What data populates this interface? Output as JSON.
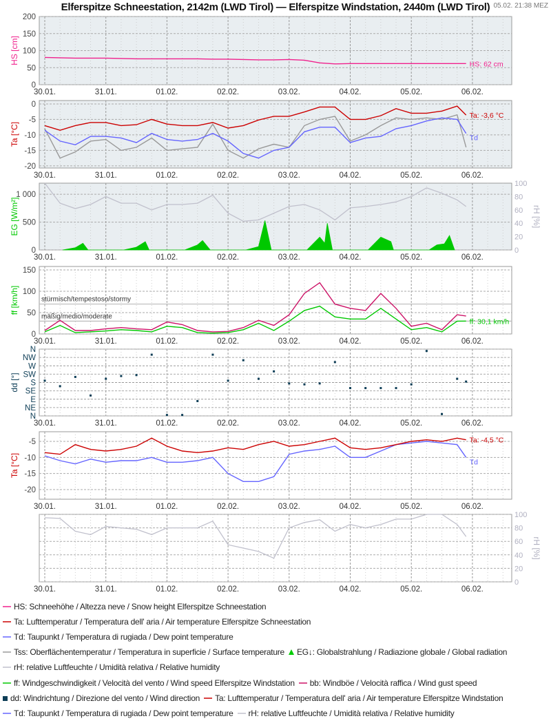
{
  "header": {
    "title": "Elferspitze Schneestation, 2142m (LWD Tirol) — Elferspitze Windstation, 2440m (LWD Tirol)",
    "timestamp": "05.02. 21:38 MEZ"
  },
  "colors": {
    "HS": "#f0208c",
    "Ta": "#cc0000",
    "Td": "#6464ff",
    "Tss": "#999999",
    "rH": "#c0c0cc",
    "EG": "#00c800",
    "ff": "#00c800",
    "bb": "#cc1166",
    "dd": "#0d3d56",
    "plot_bg": "#e9eef1",
    "grid": "#aaaaaa"
  },
  "chart_data": [
    {
      "id": "hs",
      "type": "line",
      "ylabel": "HS [cm]",
      "ylim": [
        0,
        200
      ],
      "yticks": [
        0,
        50,
        100,
        150,
        200
      ],
      "x_ticks": [
        "30.01.",
        "31.01.",
        "01.02.",
        "02.02.",
        "03.02.",
        "04.02.",
        "05.02.",
        "06.02."
      ],
      "grid": true,
      "x": [
        "30.01. 00:00",
        "30.01. 06:00",
        "30.01. 12:00",
        "30.01. 18:00",
        "31.01. 00:00",
        "31.01. 06:00",
        "31.01. 12:00",
        "31.01. 18:00",
        "01.02. 00:00",
        "01.02. 06:00",
        "01.02. 12:00",
        "01.02. 18:00",
        "02.02. 00:00",
        "02.02. 06:00",
        "02.02. 12:00",
        "02.02. 18:00",
        "03.02. 00:00",
        "03.02. 06:00",
        "03.02. 12:00",
        "03.02. 18:00",
        "04.02. 00:00",
        "04.02. 06:00",
        "04.02. 12:00",
        "04.02. 18:00",
        "05.02. 00:00",
        "05.02. 06:00",
        "05.02. 12:00",
        "05.02. 18:00",
        "05.02. 21:30"
      ],
      "series": [
        {
          "key": "HS",
          "values": [
            80,
            79,
            78,
            78,
            78,
            77,
            76,
            76,
            76,
            76,
            76,
            75,
            75,
            74,
            73,
            73,
            74,
            72,
            64,
            61,
            62,
            62,
            62,
            62,
            62,
            62,
            62,
            62,
            62
          ]
        }
      ],
      "end_labels": [
        {
          "series": "HS",
          "text": "HS: 62 cm"
        }
      ]
    },
    {
      "id": "ta1",
      "type": "line",
      "ylabel": "Ta [°C]",
      "ylim": [
        -20.7,
        1.1
      ],
      "yticks": [
        0,
        -5,
        -10,
        -15,
        -20
      ],
      "grid": true,
      "x": [
        "30.01. 00:00",
        "30.01. 06:00",
        "30.01. 12:00",
        "30.01. 18:00",
        "31.01. 00:00",
        "31.01. 06:00",
        "31.01. 12:00",
        "31.01. 18:00",
        "01.02. 00:00",
        "01.02. 06:00",
        "01.02. 12:00",
        "01.02. 18:00",
        "02.02. 00:00",
        "02.02. 06:00",
        "02.02. 12:00",
        "02.02. 18:00",
        "03.02. 00:00",
        "03.02. 06:00",
        "03.02. 12:00",
        "03.02. 18:00",
        "04.02. 00:00",
        "04.02. 06:00",
        "04.02. 12:00",
        "04.02. 18:00",
        "05.02. 00:00",
        "05.02. 06:00",
        "05.02. 12:00",
        "05.02. 18:00",
        "05.02. 21:30"
      ],
      "series": [
        {
          "key": "Tss",
          "values": [
            -8,
            -17.5,
            -15.5,
            -12,
            -11.5,
            -15,
            -14,
            -11,
            -15,
            -14.5,
            -14,
            -6.5,
            -15,
            -17.5,
            -14.5,
            -13,
            -14,
            -7,
            -5,
            -4,
            -12,
            -10,
            -7,
            -4.5,
            -5,
            -4.5,
            -5,
            -3.5,
            -14
          ]
        },
        {
          "key": "Td",
          "values": [
            -8.5,
            -12,
            -13.2,
            -10.5,
            -10.5,
            -11,
            -12.5,
            -9.5,
            -11.5,
            -12,
            -11.5,
            -9.5,
            -12,
            -16,
            -17.5,
            -15,
            -14,
            -9,
            -7.5,
            -7.5,
            -12.5,
            -11,
            -10.5,
            -8,
            -7,
            -5.5,
            -4.5,
            -5,
            -9.5
          ]
        },
        {
          "key": "Ta",
          "values": [
            -7,
            -8.5,
            -7,
            -6,
            -6,
            -7,
            -6.7,
            -5,
            -6.5,
            -7,
            -7,
            -6,
            -7.8,
            -7,
            -5.2,
            -4,
            -4,
            -2.6,
            -1,
            -1,
            -5,
            -5,
            -3.8,
            -1.5,
            -3,
            -3,
            -2.3,
            -0.7,
            -3.6
          ]
        }
      ],
      "end_labels": [
        {
          "series": "Ta",
          "text": "Ta: -3,6 °C"
        },
        {
          "series": "Td",
          "text": "Td"
        }
      ]
    },
    {
      "id": "eg",
      "type": "area",
      "ylabel": "EG [W/m²]",
      "ylim": [
        0,
        1200
      ],
      "yticks": [
        0,
        500,
        1000
      ],
      "ytick_labels": [
        "0",
        "500",
        "1 000"
      ],
      "ylabel_right": "rH [%]",
      "ylim_right": [
        0,
        100
      ],
      "yticks_right": [
        0,
        20,
        40,
        60,
        80,
        100
      ],
      "grid": true,
      "eg_points": [
        [
          "30.01. 07:00",
          0
        ],
        [
          "30.01. 12:00",
          40
        ],
        [
          "30.01. 15:00",
          120
        ],
        [
          "30.01. 17:00",
          0
        ],
        [
          "31.01. 07:00",
          0
        ],
        [
          "31.01. 12:00",
          50
        ],
        [
          "31.01. 15:30",
          150
        ],
        [
          "31.01. 17:00",
          0
        ],
        [
          "01.02. 07:00",
          0
        ],
        [
          "01.02. 12:00",
          90
        ],
        [
          "01.02. 14:00",
          170
        ],
        [
          "01.02. 17:00",
          0
        ],
        [
          "02.02. 07:00",
          0
        ],
        [
          "02.02. 12:00",
          60
        ],
        [
          "02.02. 14:30",
          530
        ],
        [
          "02.02. 17:00",
          0
        ],
        [
          "03.02. 07:00",
          0
        ],
        [
          "03.02. 12:00",
          230
        ],
        [
          "03.02. 14:00",
          120
        ],
        [
          "03.02. 15:00",
          480
        ],
        [
          "03.02. 17:00",
          0
        ],
        [
          "04.02. 07:00",
          0
        ],
        [
          "04.02. 12:00",
          230
        ],
        [
          "04.02. 16:00",
          150
        ],
        [
          "04.02. 17:00",
          0
        ],
        [
          "05.02. 07:00",
          0
        ],
        [
          "05.02. 10:00",
          90
        ],
        [
          "05.02. 13:00",
          110
        ],
        [
          "05.02. 15:00",
          260
        ],
        [
          "05.02. 17:00",
          0
        ]
      ],
      "x": [
        "30.01. 00:00",
        "30.01. 06:00",
        "30.01. 12:00",
        "30.01. 18:00",
        "31.01. 00:00",
        "31.01. 06:00",
        "31.01. 12:00",
        "31.01. 18:00",
        "01.02. 00:00",
        "01.02. 06:00",
        "01.02. 12:00",
        "01.02. 18:00",
        "02.02. 00:00",
        "02.02. 06:00",
        "02.02. 12:00",
        "02.02. 18:00",
        "03.02. 00:00",
        "03.02. 06:00",
        "03.02. 12:00",
        "03.02. 18:00",
        "04.02. 00:00",
        "04.02. 06:00",
        "04.02. 12:00",
        "04.02. 18:00",
        "05.02. 00:00",
        "05.02. 06:00",
        "05.02. 12:00",
        "05.02. 18:00",
        "05.02. 21:30"
      ],
      "series_right": [
        {
          "key": "rH",
          "values": [
            100,
            70,
            62,
            68,
            80,
            70,
            70,
            60,
            68,
            68,
            70,
            82,
            55,
            43,
            45,
            55,
            65,
            68,
            60,
            45,
            63,
            65,
            68,
            72,
            80,
            93,
            85,
            75,
            65
          ]
        }
      ]
    },
    {
      "id": "ff",
      "type": "line",
      "ylabel": "ff [km/h]",
      "ylim": [
        0,
        158
      ],
      "yticks": [
        0,
        50,
        100,
        150
      ],
      "grid": true,
      "thresholds": [
        {
          "value": 70,
          "text": "stürmisch/tempestoso/stormy"
        },
        {
          "value": 30,
          "text": "mäßig/medio/moderate"
        }
      ],
      "x": [
        "30.01. 00:00",
        "30.01. 06:00",
        "30.01. 12:00",
        "30.01. 18:00",
        "31.01. 00:00",
        "31.01. 06:00",
        "31.01. 12:00",
        "31.01. 18:00",
        "01.02. 00:00",
        "01.02. 06:00",
        "01.02. 12:00",
        "01.02. 18:00",
        "02.02. 00:00",
        "02.02. 06:00",
        "02.02. 12:00",
        "02.02. 18:00",
        "03.02. 00:00",
        "03.02. 06:00",
        "03.02. 12:00",
        "03.02. 18:00",
        "04.02. 00:00",
        "04.02. 06:00",
        "04.02. 12:00",
        "04.02. 18:00",
        "05.02. 00:00",
        "05.02. 06:00",
        "05.02. 12:00",
        "05.02. 18:00",
        "05.02. 21:30"
      ],
      "series": [
        {
          "key": "bb",
          "values": [
            8,
            32,
            8,
            8,
            12,
            15,
            12,
            10,
            28,
            22,
            8,
            5,
            6,
            15,
            32,
            20,
            45,
            95,
            120,
            70,
            60,
            55,
            95,
            60,
            18,
            25,
            10,
            45,
            42
          ]
        },
        {
          "key": "ff",
          "values": [
            5,
            20,
            3,
            5,
            7,
            10,
            8,
            5,
            18,
            15,
            3,
            2,
            3,
            10,
            25,
            8,
            30,
            55,
            65,
            40,
            35,
            35,
            60,
            35,
            10,
            15,
            5,
            30,
            30.1
          ]
        }
      ],
      "end_labels": [
        {
          "series": "ff",
          "text": "ff: 30,1 km/h"
        }
      ]
    },
    {
      "id": "dd",
      "type": "scatter",
      "ylabel": "dd [°]",
      "ylim": [
        0,
        360
      ],
      "yticks": [
        0,
        45,
        90,
        135,
        180,
        225,
        270,
        315,
        360
      ],
      "ytick_labels": [
        "N",
        "NE",
        "E",
        "SE",
        "S",
        "SW",
        "W",
        "NW",
        "N"
      ],
      "grid": true,
      "x": [
        "30.01. 00:00",
        "30.01. 06:00",
        "30.01. 12:00",
        "30.01. 18:00",
        "31.01. 00:00",
        "31.01. 06:00",
        "31.01. 12:00",
        "31.01. 18:00",
        "01.02. 00:00",
        "01.02. 06:00",
        "01.02. 12:00",
        "01.02. 18:00",
        "02.02. 00:00",
        "02.02. 06:00",
        "02.02. 12:00",
        "02.02. 18:00",
        "03.02. 00:00",
        "03.02. 06:00",
        "03.02. 12:00",
        "03.02. 18:00",
        "04.02. 00:00",
        "04.02. 06:00",
        "04.02. 12:00",
        "04.02. 18:00",
        "05.02. 00:00",
        "05.02. 06:00",
        "05.02. 12:00",
        "05.02. 18:00",
        "05.02. 21:30"
      ],
      "series": [
        {
          "key": "dd",
          "values": [
            190,
            160,
            210,
            110,
            200,
            215,
            220,
            330,
            5,
            5,
            80,
            330,
            190,
            300,
            200,
            240,
            175,
            170,
            175,
            290,
            150,
            150,
            150,
            150,
            170,
            350,
            10,
            200,
            185
          ]
        }
      ]
    },
    {
      "id": "ta2",
      "type": "line",
      "ylabel": "Ta [°C]",
      "ylim": [
        -23,
        -2
      ],
      "yticks": [
        -5,
        -10,
        -15,
        -20
      ],
      "grid": true,
      "x": [
        "30.01. 00:00",
        "30.01. 06:00",
        "30.01. 12:00",
        "30.01. 18:00",
        "31.01. 00:00",
        "31.01. 06:00",
        "31.01. 12:00",
        "31.01. 18:00",
        "01.02. 00:00",
        "01.02. 06:00",
        "01.02. 12:00",
        "01.02. 18:00",
        "02.02. 00:00",
        "02.02. 06:00",
        "02.02. 12:00",
        "02.02. 18:00",
        "03.02. 00:00",
        "03.02. 06:00",
        "03.02. 12:00",
        "03.02. 18:00",
        "04.02. 00:00",
        "04.02. 06:00",
        "04.02. 12:00",
        "04.02. 18:00",
        "05.02. 00:00",
        "05.02. 06:00",
        "05.02. 12:00",
        "05.02. 18:00",
        "05.02. 21:30"
      ],
      "series": [
        {
          "key": "Td",
          "values": [
            -9.5,
            -11,
            -12,
            -10.5,
            -11.5,
            -11,
            -11,
            -10,
            -11.5,
            -11.5,
            -11,
            -10,
            -15,
            -17.5,
            -17.5,
            -16,
            -9,
            -8,
            -7.5,
            -6.5,
            -10,
            -10,
            -8,
            -6,
            -5.5,
            -5,
            -5.5,
            -6,
            -10
          ]
        },
        {
          "key": "Ta",
          "values": [
            -8.5,
            -9,
            -6,
            -7.5,
            -8,
            -7.5,
            -6.5,
            -4,
            -6.5,
            -8,
            -8.5,
            -8,
            -7,
            -7.5,
            -6,
            -5,
            -6.5,
            -6,
            -5,
            -4,
            -7,
            -7.5,
            -7,
            -6,
            -5,
            -4.5,
            -5,
            -4,
            -4.5
          ]
        }
      ],
      "end_labels": [
        {
          "series": "Ta",
          "text": "Ta: -4,5 °C"
        },
        {
          "series": "Td",
          "text": "Td"
        }
      ]
    },
    {
      "id": "rh2",
      "type": "line",
      "ylabel_right": "rH [%]",
      "ylim_right": [
        0,
        100
      ],
      "yticks_right": [
        0,
        20,
        40,
        60,
        80,
        100
      ],
      "grid": true,
      "x": [
        "30.01. 00:00",
        "30.01. 06:00",
        "30.01. 12:00",
        "30.01. 18:00",
        "31.01. 00:00",
        "31.01. 06:00",
        "31.01. 12:00",
        "31.01. 18:00",
        "01.02. 00:00",
        "01.02. 06:00",
        "01.02. 12:00",
        "01.02. 18:00",
        "02.02. 00:00",
        "02.02. 06:00",
        "02.02. 12:00",
        "02.02. 18:00",
        "03.02. 00:00",
        "03.02. 06:00",
        "03.02. 12:00",
        "03.02. 18:00",
        "04.02. 00:00",
        "04.02. 06:00",
        "04.02. 12:00",
        "04.02. 18:00",
        "05.02. 00:00",
        "05.02. 06:00",
        "05.02. 12:00",
        "05.02. 18:00",
        "05.02. 21:30"
      ],
      "series_right": [
        {
          "key": "rH",
          "values": [
            95,
            94,
            75,
            70,
            82,
            80,
            78,
            70,
            80,
            80,
            80,
            90,
            55,
            50,
            45,
            35,
            80,
            88,
            92,
            75,
            85,
            80,
            85,
            93,
            93,
            100,
            100,
            85,
            67
          ]
        }
      ]
    }
  ],
  "legend": {
    "rows": [
      [
        {
          "key": "HS",
          "text": "HS: Schneehöhe / Altezza neve / Snow height  Elferspitze Schneestation"
        }
      ],
      [
        {
          "key": "Ta",
          "text": "Ta: Lufttemperatur / Temperatura dell' aria / Air temperature  Elferspitze Schneestation"
        }
      ],
      [
        {
          "key": "Td",
          "text": "Td: Taupunkt / Temperatura di rugiada / Dew point temperature"
        }
      ],
      [
        {
          "key": "Tss",
          "text": "Tss: Oberflächentemperatur / Temperatura in superficie / Surface temperature"
        },
        {
          "key": "EG",
          "marker": "triangle",
          "text": "EG↓: Globalstrahlung / Radiazione globale / Global radiation"
        }
      ],
      [
        {
          "key": "rH",
          "text": "rH: relative Luftfeuchte / Umidità relativa / Relative humidity"
        }
      ],
      [
        {
          "key": "ff",
          "text": "ff: Windgeschwindigkeit / Velocità del vento / Wind speed  Elferspitze Windstation"
        },
        {
          "key": "bb",
          "text": "bb: Windböe / Velocità raffica / Wind gust speed"
        }
      ],
      [
        {
          "key": "dd",
          "marker": "square",
          "text": "dd: Windrichtung / Direzione del vento / Wind direction"
        },
        {
          "key": "Ta",
          "text": "Ta: Lufttemperatur / Temperatura dell' aria / Air temperature  Elferspitze Windstation"
        }
      ],
      [
        {
          "key": "Td",
          "text": "Td: Taupunkt / Temperatura di rugiada / Dew point temperature"
        },
        {
          "key": "rH",
          "text": "rH: relative Luftfeuchte / Umidità relativa / Relative humidity"
        }
      ]
    ]
  }
}
